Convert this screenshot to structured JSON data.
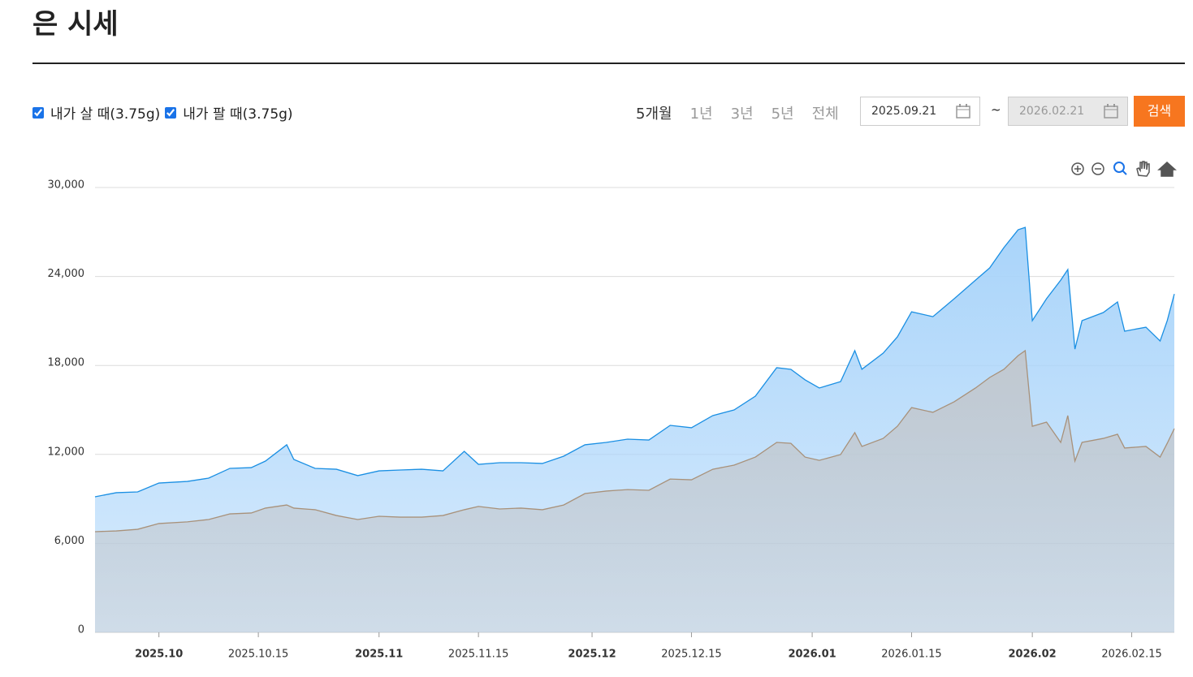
{
  "header": {
    "title": "은 시세"
  },
  "controls": {
    "periods": [
      "5개월",
      "1년",
      "3년",
      "5년",
      "전체"
    ],
    "start_date": "2025.09.21",
    "separator": "~",
    "end_date": "2026.02.21",
    "search": "검색"
  },
  "chart_data": {
    "type": "area",
    "x": [
      "2025-09-22",
      "2025-09-25",
      "2025-09-28",
      "2025-10-01",
      "2025-10-05",
      "2025-10-08",
      "2025-10-11",
      "2025-10-14",
      "2025-10-16",
      "2025-10-19",
      "2025-10-20",
      "2025-10-23",
      "2025-10-26",
      "2025-10-29",
      "2025-11-01",
      "2025-11-04",
      "2025-11-07",
      "2025-11-10",
      "2025-11-13",
      "2025-11-15",
      "2025-11-18",
      "2025-11-21",
      "2025-11-24",
      "2025-11-27",
      "2025-11-30",
      "2025-12-03",
      "2025-12-06",
      "2025-12-09",
      "2025-12-12",
      "2025-12-15",
      "2025-12-18",
      "2025-12-21",
      "2025-12-24",
      "2025-12-27",
      "2025-12-29",
      "2025-12-31",
      "2026-01-02",
      "2026-01-05",
      "2026-01-07",
      "2026-01-08",
      "2026-01-11",
      "2026-01-13",
      "2026-01-15",
      "2026-01-18",
      "2026-01-21",
      "2026-01-24",
      "2026-01-26",
      "2026-01-28",
      "2026-01-30",
      "2026-01-31",
      "2026-02-01",
      "2026-02-03",
      "2026-02-05",
      "2026-02-06",
      "2026-02-07",
      "2026-02-08",
      "2026-02-11",
      "2026-02-13",
      "2026-02-14",
      "2026-02-17",
      "2026-02-19",
      "2026-02-20",
      "2026-02-21"
    ],
    "series": [
      {
        "name": "내가 살 때(3.75g)",
        "color": "#1a8fe3",
        "fill": "#a9d4fa",
        "values": [
          9140,
          9420,
          9470,
          10070,
          10180,
          10400,
          11060,
          11110,
          11550,
          12650,
          11660,
          11060,
          11000,
          10570,
          10890,
          10950,
          11000,
          10890,
          12210,
          11330,
          11440,
          11440,
          11390,
          11880,
          12650,
          12810,
          13030,
          12970,
          13960,
          13800,
          14620,
          15000,
          15930,
          17850,
          17740,
          17030,
          16480,
          16910,
          19000,
          17740,
          18830,
          19930,
          21620,
          21290,
          22500,
          23750,
          24580,
          25950,
          27150,
          27310,
          21020,
          22500,
          23750,
          24470,
          19100,
          21020,
          21570,
          22280,
          20310,
          20580,
          19650,
          21020,
          22820
        ]
      },
      {
        "name": "내가 팔 때(3.75g)",
        "color": "#a8917a",
        "fill": "#c2c6cb",
        "values": [
          6790,
          6840,
          6950,
          7340,
          7450,
          7610,
          7990,
          8050,
          8380,
          8590,
          8380,
          8270,
          7880,
          7610,
          7830,
          7770,
          7770,
          7880,
          8270,
          8490,
          8320,
          8380,
          8270,
          8590,
          9360,
          9530,
          9630,
          9580,
          10340,
          10290,
          11000,
          11280,
          11820,
          12810,
          12750,
          11820,
          11600,
          11990,
          13470,
          12540,
          13080,
          13900,
          15160,
          14840,
          15550,
          16480,
          17190,
          17740,
          18660,
          19000,
          13900,
          14180,
          12810,
          14620,
          11550,
          12810,
          13080,
          13360,
          12430,
          12540,
          11820,
          12750,
          13740
        ]
      }
    ],
    "xlim": [
      "2025-09-22",
      "2026-02-21"
    ],
    "xticks": [
      {
        "value": "2025-10-01",
        "label": "2025.10"
      },
      {
        "value": "2025-10-15",
        "label": "2025.10.15"
      },
      {
        "value": "2025-11-01",
        "label": "2025.11"
      },
      {
        "value": "2025-11-15",
        "label": "2025.11.15"
      },
      {
        "value": "2025-12-01",
        "label": "2025.12"
      },
      {
        "value": "2025-12-15",
        "label": "2025.12.15"
      },
      {
        "value": "2026-01-01",
        "label": "2026.01"
      },
      {
        "value": "2026-01-15",
        "label": "2026.01.15"
      },
      {
        "value": "2026-02-01",
        "label": "2026.02"
      },
      {
        "value": "2026-02-15",
        "label": "2026.02.15"
      }
    ],
    "ylim": [
      0,
      30000
    ],
    "yticks": [
      0,
      {
        "value": 6000,
        "label": "6,000"
      },
      {
        "value": 12000,
        "label": "12,000"
      },
      {
        "value": 18000,
        "label": "18,000"
      },
      {
        "value": 24000,
        "label": "24,000"
      },
      {
        "value": 30000,
        "label": "30,000"
      }
    ],
    "grid": true
  }
}
